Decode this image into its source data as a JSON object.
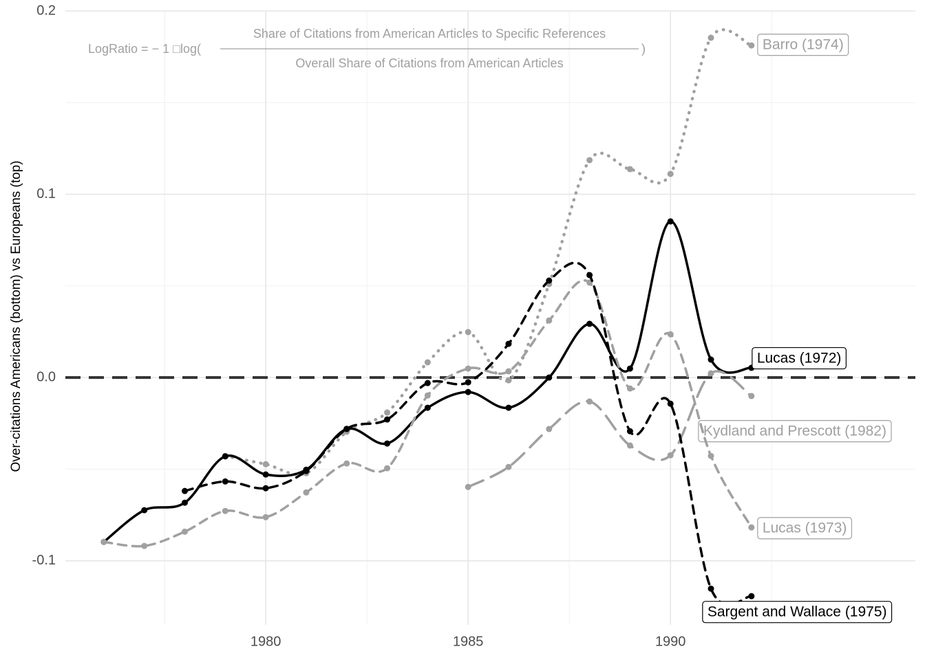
{
  "chart_data": {
    "type": "line",
    "y_label": "Over-citations Americans (bottom) vs Europeans (top)",
    "annotation": {
      "prefix": "LogRatio = − 1 □log(",
      "numerator": "Share of Citations from American Articles to Specific References",
      "denominator": "Overall Share of Citations from American Articles",
      "suffix": ")"
    },
    "hline": 0,
    "xlim": [
      1975.05,
      1996.05
    ],
    "xticks": [
      1980,
      1985,
      1990
    ],
    "ylim": [
      -0.135,
      0.2
    ],
    "yticks": [
      -0.1,
      {
        "value": 0,
        "label": "0.0"
      },
      0.1,
      0.2
    ],
    "grid": true,
    "series": [
      {
        "name": "Barro (1974)",
        "color": "#a0a0a0",
        "linetype": "dotted",
        "x": [
          1979,
          1980,
          1981,
          1982,
          1983,
          1984,
          1985,
          1986,
          1987,
          1988,
          1989,
          1990,
          1991,
          1992
        ],
        "values": [
          -0.0428,
          -0.0473,
          -0.0522,
          -0.0296,
          -0.0191,
          0.0083,
          0.0248,
          -0.0015,
          0.051,
          0.1186,
          0.1137,
          0.1111,
          0.1854,
          0.1812
        ]
      },
      {
        "name": "Lucas (1972)",
        "color": "#000000",
        "linetype": "solid",
        "x": [
          1976,
          1977,
          1978,
          1979,
          1980,
          1981,
          1982,
          1983,
          1984,
          1985,
          1986,
          1987,
          1988,
          1989,
          1990,
          1991,
          1992
        ],
        "values": [
          -0.0897,
          -0.0724,
          -0.0683,
          -0.043,
          -0.0529,
          -0.0503,
          -0.0281,
          -0.036,
          -0.0165,
          -0.0079,
          -0.0165,
          0.0,
          0.0293,
          0.0049,
          0.0852,
          0.0098,
          0.0053
        ]
      },
      {
        "name": "Kydland and Prescott (1982)",
        "color": "#a0a0a0",
        "linetype": "longdash",
        "x": [
          1985,
          1986,
          1987,
          1988,
          1989,
          1990,
          1991,
          1992
        ],
        "values": [
          -0.0597,
          -0.0488,
          -0.0281,
          -0.0131,
          -0.0371,
          -0.0424,
          0.0023,
          -0.0101
        ]
      },
      {
        "name": "Lucas (1973)",
        "color": "#a0a0a0",
        "linetype": "dashed",
        "x": [
          1976,
          1977,
          1978,
          1979,
          1980,
          1981,
          1982,
          1983,
          1984,
          1985,
          1986,
          1987,
          1988,
          1989,
          1990,
          1991,
          1992
        ],
        "values": [
          -0.0897,
          -0.0919,
          -0.0841,
          -0.0728,
          -0.0762,
          -0.0627,
          -0.0469,
          -0.0495,
          -0.0098,
          0.0049,
          0.0034,
          0.0311,
          0.0518,
          -0.006,
          0.0236,
          -0.0428,
          -0.0818
        ]
      },
      {
        "name": "Sargent and Wallace (1975)",
        "color": "#000000",
        "linetype": "dashed",
        "x": [
          1978,
          1979,
          1980,
          1981,
          1982,
          1983,
          1984,
          1985,
          1986,
          1987,
          1988,
          1989,
          1990,
          1991,
          1992
        ],
        "values": [
          -0.0619,
          -0.0567,
          -0.0604,
          -0.051,
          -0.028,
          -0.0229,
          -0.003,
          -0.0026,
          0.0184,
          0.0529,
          0.0559,
          -0.0293,
          -0.0143,
          -0.1152,
          -0.1193
        ]
      }
    ]
  }
}
